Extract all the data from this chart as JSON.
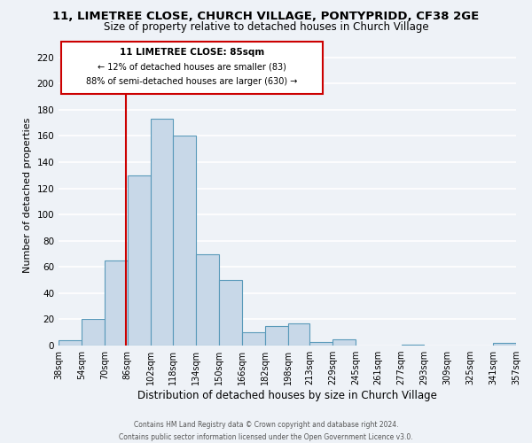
{
  "title": "11, LIMETREE CLOSE, CHURCH VILLAGE, PONTYPRIDD, CF38 2GE",
  "subtitle": "Size of property relative to detached houses in Church Village",
  "xlabel": "Distribution of detached houses by size in Church Village",
  "ylabel": "Number of detached properties",
  "bar_edges": [
    38,
    54,
    70,
    86,
    102,
    118,
    134,
    150,
    166,
    182,
    198,
    213,
    229,
    245,
    261,
    277,
    293,
    309,
    325,
    341,
    357
  ],
  "bar_heights": [
    4,
    20,
    65,
    130,
    173,
    160,
    70,
    50,
    10,
    15,
    17,
    3,
    5,
    0,
    0,
    1,
    0,
    0,
    0,
    2
  ],
  "bar_color": "#c8d8e8",
  "bar_edgecolor": "#5a9aba",
  "ylim": [
    0,
    230
  ],
  "yticks": [
    0,
    20,
    40,
    60,
    80,
    100,
    120,
    140,
    160,
    180,
    200,
    220
  ],
  "xtick_labels": [
    "38sqm",
    "54sqm",
    "70sqm",
    "86sqm",
    "102sqm",
    "118sqm",
    "134sqm",
    "150sqm",
    "166sqm",
    "182sqm",
    "198sqm",
    "213sqm",
    "229sqm",
    "245sqm",
    "261sqm",
    "277sqm",
    "293sqm",
    "309sqm",
    "325sqm",
    "341sqm",
    "357sqm"
  ],
  "property_size": 85,
  "property_line_color": "#cc0000",
  "annotation_title": "11 LIMETREE CLOSE: 85sqm",
  "annotation_line1": "← 12% of detached houses are smaller (83)",
  "annotation_line2": "88% of semi-detached houses are larger (630) →",
  "annotation_box_color": "#ffffff",
  "annotation_box_edgecolor": "#cc0000",
  "footer_line1": "Contains HM Land Registry data © Crown copyright and database right 2024.",
  "footer_line2": "Contains public sector information licensed under the Open Government Licence v3.0.",
  "background_color": "#eef2f7",
  "grid_color": "#ffffff",
  "title_fontsize": 9.5,
  "subtitle_fontsize": 8.5,
  "xlabel_fontsize": 8.5,
  "ylabel_fontsize": 8,
  "tick_fontsize": 7,
  "ytick_fontsize": 7.5
}
